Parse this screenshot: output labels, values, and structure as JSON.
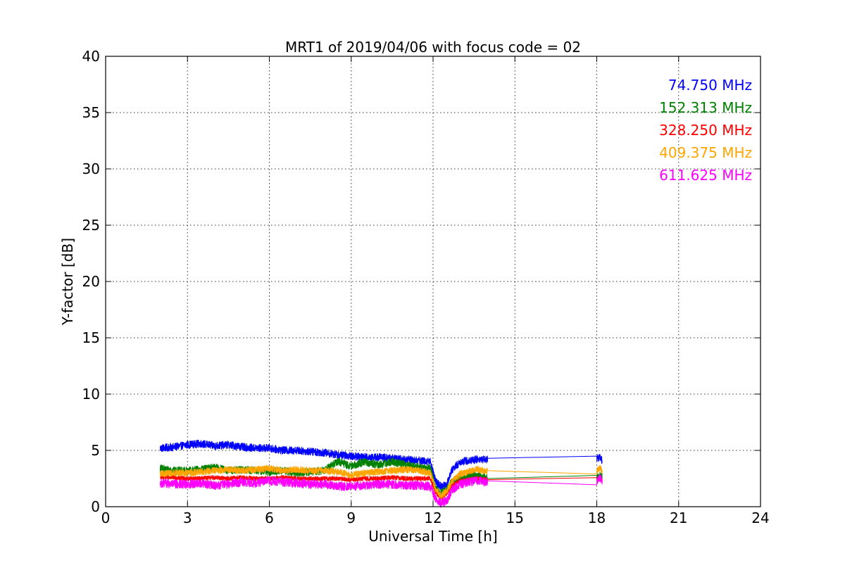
{
  "chart_data": {
    "type": "line",
    "title": "MRT1 of 2019/04/06 with focus code = 02",
    "xlabel": "Universal Time [h]",
    "ylabel": "Y-factor [dB]",
    "xlim": [
      0,
      24
    ],
    "ylim": [
      0,
      40
    ],
    "xticks": [
      0,
      3,
      6,
      9,
      12,
      15,
      18,
      21,
      24
    ],
    "yticks": [
      0,
      5,
      10,
      15,
      20,
      25,
      30,
      35,
      40
    ],
    "grid": true,
    "legend_position": "top-right",
    "series": [
      {
        "name": "74.750 MHz",
        "color": "#0000ff",
        "noise": 0.35,
        "x": [
          2.0,
          2.5,
          3.0,
          3.5,
          4.0,
          4.5,
          5.0,
          5.5,
          6.0,
          6.5,
          7.0,
          7.5,
          8.0,
          8.5,
          9.0,
          9.5,
          10.0,
          10.5,
          11.0,
          11.5,
          11.9,
          12.1,
          12.3,
          12.5,
          12.7,
          13.0,
          13.3,
          13.6,
          13.95,
          14.0,
          18.0,
          18.1,
          18.2
        ],
        "y": [
          5.2,
          5.3,
          5.5,
          5.6,
          5.4,
          5.5,
          5.3,
          5.2,
          5.2,
          5.0,
          5.0,
          4.9,
          4.8,
          4.6,
          4.5,
          4.4,
          4.4,
          4.3,
          4.2,
          4.1,
          4.0,
          2.2,
          1.8,
          2.0,
          3.3,
          4.0,
          4.1,
          4.2,
          4.2,
          4.3,
          4.25,
          4.4,
          4.1
        ]
      },
      {
        "name": "152.313 MHz",
        "color": "#008000",
        "noise": 0.35,
        "x": [
          2.0,
          2.5,
          3.0,
          3.5,
          4.0,
          4.5,
          5.0,
          5.5,
          6.0,
          6.5,
          7.0,
          7.5,
          8.0,
          8.5,
          9.0,
          9.5,
          10.0,
          10.5,
          11.0,
          11.5,
          11.9,
          12.1,
          12.3,
          12.5,
          12.7,
          13.0,
          13.3,
          13.6,
          13.95,
          14.0,
          18.0,
          18.1,
          18.2
        ],
        "y": [
          3.4,
          3.2,
          3.2,
          3.3,
          3.5,
          3.2,
          3.3,
          3.2,
          3.1,
          3.2,
          3.0,
          3.1,
          3.2,
          4.0,
          3.6,
          4.0,
          3.7,
          4.0,
          3.7,
          3.5,
          3.4,
          1.6,
          1.2,
          1.6,
          2.2,
          2.5,
          2.7,
          2.8,
          2.6,
          2.5,
          2.5,
          2.7,
          2.6
        ]
      },
      {
        "name": "328.250 MHz",
        "color": "#ff0000",
        "noise": 0.2,
        "x": [
          2.0,
          2.5,
          3.0,
          3.5,
          4.0,
          4.5,
          5.0,
          5.5,
          6.0,
          6.5,
          7.0,
          7.5,
          8.0,
          8.5,
          9.0,
          9.5,
          10.0,
          10.5,
          11.0,
          11.5,
          11.9,
          12.1,
          12.3,
          12.5,
          12.7,
          13.0,
          13.3,
          13.6,
          13.95,
          14.0,
          18.0,
          18.1,
          18.2
        ],
        "y": [
          2.6,
          2.6,
          2.5,
          2.5,
          2.6,
          2.5,
          2.6,
          2.5,
          2.5,
          2.6,
          2.5,
          2.5,
          2.5,
          2.5,
          2.4,
          2.5,
          2.5,
          2.6,
          2.5,
          2.5,
          2.5,
          1.2,
          0.8,
          1.2,
          1.9,
          2.3,
          2.4,
          2.5,
          2.4,
          2.4,
          2.4,
          2.5,
          2.4
        ]
      },
      {
        "name": "409.375 MHz",
        "color": "#ffa500",
        "noise": 0.3,
        "x": [
          2.0,
          2.5,
          3.0,
          3.5,
          4.0,
          4.5,
          5.0,
          5.5,
          6.0,
          6.5,
          7.0,
          7.5,
          8.0,
          8.5,
          9.0,
          9.5,
          10.0,
          10.5,
          11.0,
          11.5,
          11.9,
          12.1,
          12.3,
          12.5,
          12.7,
          13.0,
          13.3,
          13.6,
          13.95,
          14.0,
          18.0,
          18.1,
          18.2
        ],
        "y": [
          2.9,
          3.0,
          3.0,
          3.1,
          3.2,
          3.3,
          3.2,
          3.3,
          3.4,
          3.2,
          3.3,
          3.2,
          3.2,
          3.1,
          2.8,
          3.0,
          3.1,
          3.2,
          3.3,
          3.2,
          3.0,
          1.5,
          1.0,
          1.4,
          2.3,
          2.9,
          3.1,
          3.3,
          3.2,
          3.2,
          3.2,
          3.4,
          3.2
        ]
      },
      {
        "name": "611.625 MHz",
        "color": "#ff00ff",
        "noise": 0.4,
        "x": [
          2.0,
          2.5,
          3.0,
          3.5,
          4.0,
          4.5,
          5.0,
          5.5,
          6.0,
          6.5,
          7.0,
          7.5,
          8.0,
          8.5,
          9.0,
          9.5,
          10.0,
          10.5,
          11.0,
          11.5,
          11.9,
          12.1,
          12.3,
          12.5,
          12.7,
          13.0,
          13.3,
          13.6,
          13.95,
          14.0,
          18.0,
          18.1,
          18.2
        ],
        "y": [
          2.1,
          2.0,
          2.0,
          2.1,
          1.9,
          2.0,
          2.2,
          2.1,
          2.3,
          2.2,
          2.1,
          2.0,
          2.0,
          1.8,
          1.8,
          1.9,
          2.0,
          2.0,
          1.9,
          1.9,
          1.8,
          0.6,
          0.3,
          0.5,
          1.5,
          2.0,
          2.2,
          2.3,
          2.2,
          2.3,
          2.3,
          2.6,
          2.3
        ]
      }
    ]
  }
}
